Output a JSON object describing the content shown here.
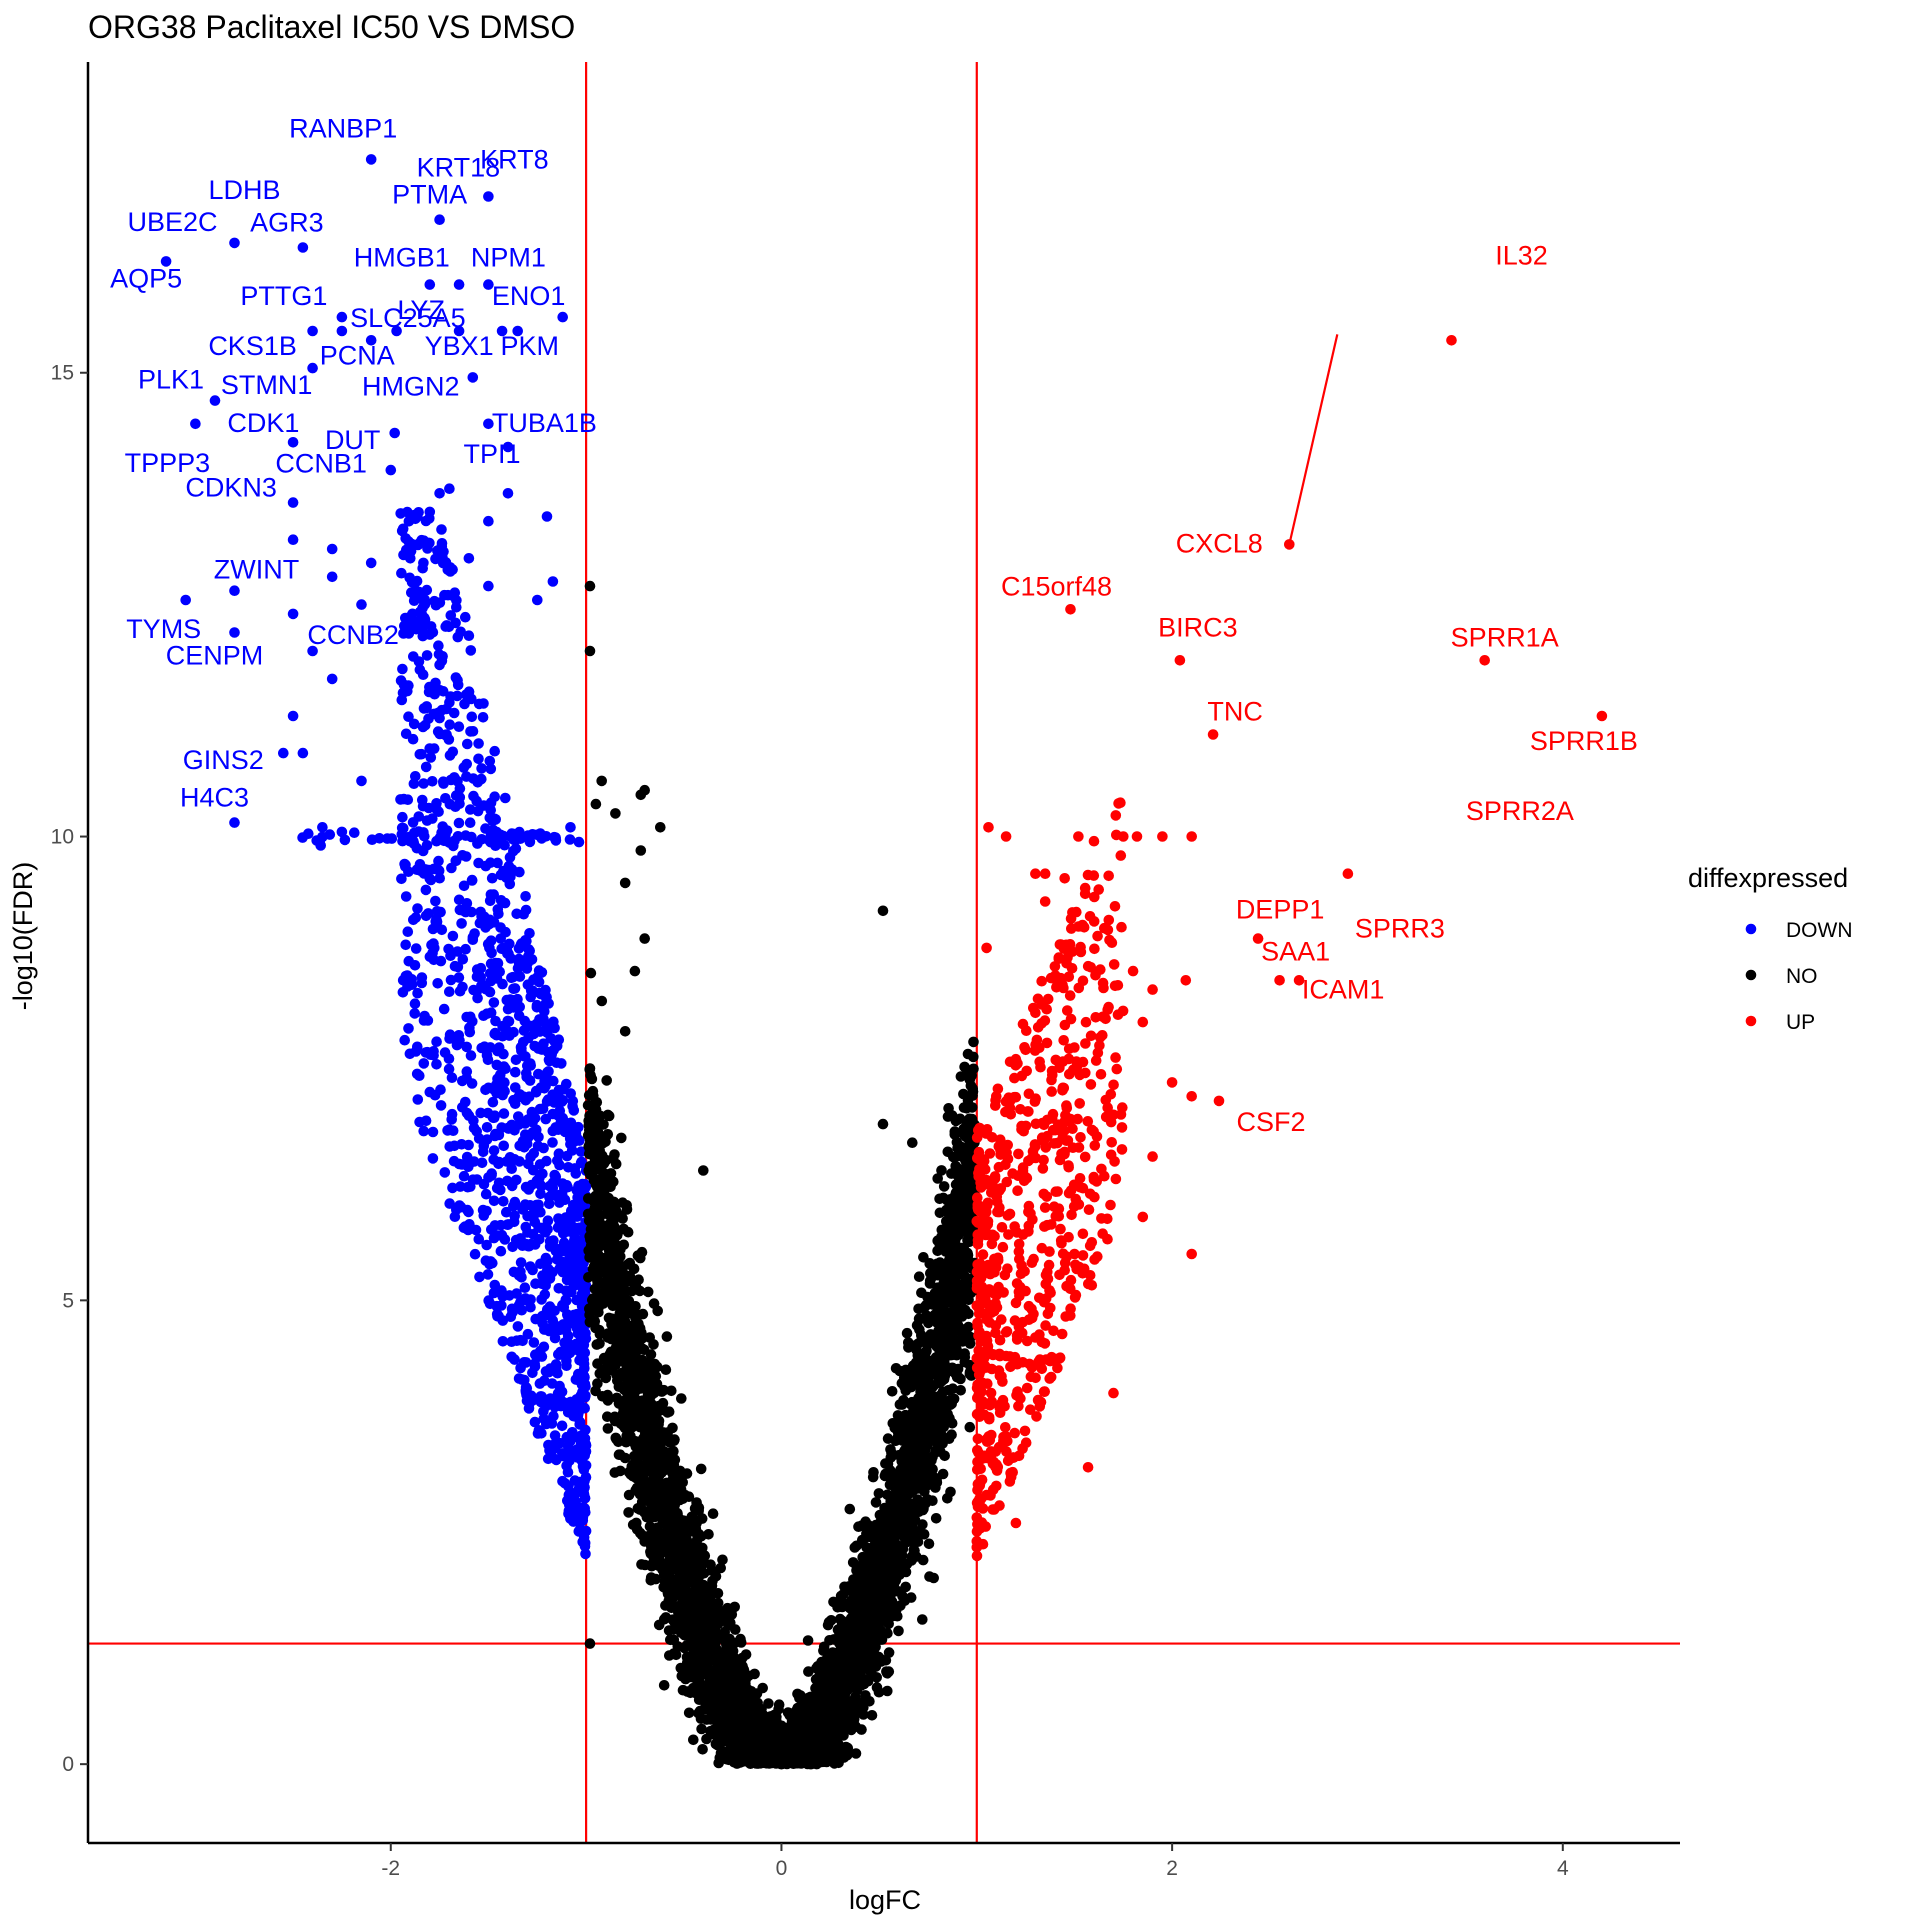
{
  "chart_data": {
    "type": "scatter",
    "title": "ORG38 Paclitaxel IC50 VS DMSO",
    "xlabel": "logFC",
    "ylabel": "-log10(FDR)",
    "xlim": [
      -3.55,
      4.6
    ],
    "ylim": [
      -0.85,
      18.35
    ],
    "xticks": [
      -2,
      0,
      2,
      4
    ],
    "xtick_labels": [
      "-2",
      "0",
      "2",
      "4"
    ],
    "yticks": [
      0,
      5,
      10,
      15
    ],
    "ytick_labels": [
      "0",
      "5",
      "10",
      "15"
    ],
    "grid": false,
    "reference_lines": {
      "vertical": [
        -1,
        1
      ],
      "horizontal": [
        1.3
      ],
      "color": "#ff0000"
    },
    "legend": {
      "title": "diffexpressed",
      "position": "right",
      "entries": [
        {
          "label": "DOWN",
          "color": "#0000ff"
        },
        {
          "label": "NO",
          "color": "#000000"
        },
        {
          "label": "UP",
          "color": "#ff0000"
        }
      ]
    },
    "series": [
      {
        "name": "DOWN",
        "color": "#0000ff",
        "points": [
          [
            -2.1,
            17.3
          ],
          [
            -1.5,
            16.9
          ],
          [
            -1.75,
            16.65
          ],
          [
            -2.8,
            16.4
          ],
          [
            -2.45,
            16.35
          ],
          [
            -3.15,
            16.2
          ],
          [
            -1.8,
            15.95
          ],
          [
            -1.65,
            15.95
          ],
          [
            -1.5,
            15.95
          ],
          [
            -1.12,
            15.6
          ],
          [
            -2.25,
            15.6
          ],
          [
            -2.4,
            15.45
          ],
          [
            -2.25,
            15.45
          ],
          [
            -1.65,
            15.45
          ],
          [
            -1.43,
            15.45
          ],
          [
            -1.35,
            15.45
          ],
          [
            -1.97,
            15.45
          ],
          [
            -2.1,
            15.35
          ],
          [
            -2.4,
            15.05
          ],
          [
            -1.58,
            14.95
          ],
          [
            -2.9,
            14.7
          ],
          [
            -3.0,
            14.45
          ],
          [
            -1.5,
            14.45
          ],
          [
            -2.5,
            14.25
          ],
          [
            -1.98,
            14.35
          ],
          [
            -1.4,
            14.2
          ],
          [
            -2.0,
            13.95
          ],
          [
            -1.7,
            13.75
          ],
          [
            -1.75,
            13.7
          ],
          [
            -1.4,
            13.7
          ],
          [
            -2.5,
            13.6
          ],
          [
            -1.8,
            13.5
          ],
          [
            -1.5,
            13.4
          ],
          [
            -1.2,
            13.45
          ],
          [
            -2.5,
            13.2
          ],
          [
            -2.3,
            13.1
          ],
          [
            -1.6,
            13.0
          ],
          [
            -2.1,
            12.95
          ],
          [
            -1.9,
            13.0
          ],
          [
            -2.3,
            12.8
          ],
          [
            -1.17,
            12.75
          ],
          [
            -2.8,
            12.65
          ],
          [
            -3.05,
            12.55
          ],
          [
            -1.5,
            12.7
          ],
          [
            -2.15,
            12.5
          ],
          [
            -2.5,
            12.4
          ],
          [
            -1.25,
            12.55
          ],
          [
            -1.9,
            12.3
          ],
          [
            -2.8,
            12.2
          ],
          [
            -2.4,
            12.0
          ],
          [
            -2.3,
            11.7
          ],
          [
            -1.75,
            11.85
          ],
          [
            -2.5,
            11.3
          ],
          [
            -2.55,
            10.9
          ],
          [
            -2.45,
            10.9
          ],
          [
            -2.15,
            10.6
          ],
          [
            -1.95,
            10.4
          ],
          [
            -2.8,
            10.15
          ],
          [
            -1.08,
            10.1
          ],
          [
            -2.35,
            10.1
          ],
          [
            -2.25,
            10.05
          ]
        ]
      },
      {
        "name": "NO",
        "color": "#000000",
        "points": [
          [
            -0.98,
            12.7
          ],
          [
            -0.98,
            12.0
          ],
          [
            -0.92,
            10.6
          ],
          [
            -0.7,
            10.5
          ],
          [
            -0.72,
            10.45
          ],
          [
            -0.95,
            10.35
          ],
          [
            -0.62,
            10.1
          ],
          [
            -0.72,
            9.85
          ],
          [
            -0.85,
            10.25
          ],
          [
            0.52,
            9.2
          ],
          [
            -0.8,
            9.5
          ],
          [
            -0.7,
            8.9
          ],
          [
            -0.75,
            8.55
          ],
          [
            -0.8,
            7.9
          ],
          [
            0.52,
            6.9
          ],
          [
            0.67,
            6.7
          ],
          [
            -0.4,
            6.4
          ],
          [
            0.35,
            2.75
          ],
          [
            -0.35,
            2.7
          ],
          [
            -0.98,
            1.3
          ],
          [
            -0.6,
            0.85
          ],
          [
            -0.5,
            0.95
          ],
          [
            -0.2,
            0.4
          ],
          [
            -0.1,
            0.2
          ],
          [
            0.0,
            0.0
          ],
          [
            0.1,
            0.2
          ],
          [
            0.2,
            0.5
          ],
          [
            0.3,
            0.9
          ],
          [
            0.4,
            1.3
          ],
          [
            0.55,
            1.8
          ],
          [
            0.65,
            2.5
          ],
          [
            0.75,
            3.5
          ],
          [
            0.85,
            4.5
          ],
          [
            0.9,
            5.5
          ],
          [
            0.95,
            6.5
          ],
          [
            -0.2,
            0.35
          ],
          [
            -0.3,
            0.7
          ],
          [
            -0.45,
            1.2
          ],
          [
            -0.55,
            1.7
          ],
          [
            -0.7,
            2.4
          ],
          [
            -0.8,
            3.3
          ],
          [
            -0.85,
            4.3
          ],
          [
            -0.9,
            5.3
          ],
          [
            -0.95,
            6.3
          ],
          [
            -0.98,
            7.5
          ]
        ]
      },
      {
        "name": "UP",
        "color": "#ff0000",
        "points": [
          [
            3.43,
            15.35
          ],
          [
            2.6,
            13.15
          ],
          [
            1.48,
            12.45
          ],
          [
            2.04,
            11.9
          ],
          [
            3.6,
            11.9
          ],
          [
            2.21,
            11.1
          ],
          [
            4.2,
            11.3
          ],
          [
            2.9,
            9.6
          ],
          [
            2.44,
            8.9
          ],
          [
            2.55,
            8.45
          ],
          [
            2.65,
            8.45
          ],
          [
            1.06,
            10.1
          ],
          [
            1.15,
            10.0
          ],
          [
            1.52,
            10.0
          ],
          [
            1.6,
            9.95
          ],
          [
            1.75,
            10.0
          ],
          [
            1.82,
            10.0
          ],
          [
            1.95,
            10.0
          ],
          [
            2.1,
            10.0
          ],
          [
            1.3,
            9.6
          ],
          [
            1.35,
            9.6
          ],
          [
            1.45,
            9.55
          ],
          [
            1.35,
            9.3
          ],
          [
            1.8,
            8.55
          ],
          [
            2.07,
            8.45
          ],
          [
            1.9,
            8.35
          ],
          [
            1.85,
            8.0
          ],
          [
            2.24,
            7.15
          ],
          [
            2.1,
            7.2
          ],
          [
            2.0,
            7.35
          ],
          [
            1.9,
            6.55
          ],
          [
            1.85,
            5.9
          ],
          [
            2.1,
            5.5
          ],
          [
            1.7,
            4.0
          ],
          [
            1.57,
            3.2
          ],
          [
            1.15,
            4.4
          ],
          [
            1.25,
            5.1
          ],
          [
            1.35,
            6.0
          ],
          [
            1.45,
            6.6
          ],
          [
            1.1,
            7.2
          ],
          [
            1.2,
            7.6
          ],
          [
            1.3,
            8.1
          ],
          [
            1.4,
            8.6
          ],
          [
            1.05,
            8.8
          ],
          [
            1.15,
            3.5
          ],
          [
            1.05,
            2.9
          ],
          [
            1.2,
            2.6
          ],
          [
            1.1,
            3.0
          ],
          [
            1.3,
            4.6
          ],
          [
            1.5,
            5.5
          ],
          [
            1.6,
            6.3
          ],
          [
            1.7,
            7.0
          ]
        ]
      }
    ],
    "labels": [
      {
        "text": "RANBP1",
        "x": -2.1,
        "y": 17.3,
        "group": "DOWN"
      },
      {
        "text": "KRT8",
        "x": -1.5,
        "y": 16.9,
        "group": "DOWN"
      },
      {
        "text": "KRT18",
        "x": -1.5,
        "y": 16.9,
        "group": "DOWN"
      },
      {
        "text": "LDHB",
        "x": -2.8,
        "y": 16.4,
        "group": "DOWN"
      },
      {
        "text": "SLC25A5",
        "x": -2.25,
        "y": 15.6,
        "group": "DOWN"
      },
      {
        "text": "PTMA",
        "x": -1.75,
        "y": 16.65,
        "group": "DOWN"
      },
      {
        "text": "UBE2C",
        "x": -2.8,
        "y": 16.4,
        "group": "DOWN"
      },
      {
        "text": "AGR3",
        "x": -2.45,
        "y": 16.35,
        "group": "DOWN"
      },
      {
        "text": "HMGB1",
        "x": -1.8,
        "y": 15.95,
        "group": "DOWN"
      },
      {
        "text": "NPM1",
        "x": -1.5,
        "y": 15.95,
        "group": "DOWN"
      },
      {
        "text": "AQP5",
        "x": -3.15,
        "y": 16.2,
        "group": "DOWN"
      },
      {
        "text": "PTTG1",
        "x": -2.25,
        "y": 15.6,
        "group": "DOWN"
      },
      {
        "text": "LYZ",
        "x": -1.65,
        "y": 15.45,
        "group": "DOWN"
      },
      {
        "text": "ENO1",
        "x": -1.12,
        "y": 15.6,
        "group": "DOWN"
      },
      {
        "text": "CKS1B",
        "x": -2.4,
        "y": 15.45,
        "group": "DOWN"
      },
      {
        "text": "PCNA",
        "x": -2.1,
        "y": 15.35,
        "group": "DOWN"
      },
      {
        "text": "YBX1",
        "x": -1.65,
        "y": 15.45,
        "group": "DOWN"
      },
      {
        "text": "PKM",
        "x": -1.35,
        "y": 15.45,
        "group": "DOWN"
      },
      {
        "text": "PLK1",
        "x": -2.9,
        "y": 14.7,
        "group": "DOWN"
      },
      {
        "text": "STMN1",
        "x": -2.4,
        "y": 15.05,
        "group": "DOWN"
      },
      {
        "text": "HMGN2",
        "x": -1.58,
        "y": 14.95,
        "group": "DOWN"
      },
      {
        "text": "TUBA1B",
        "x": -1.5,
        "y": 14.45,
        "group": "DOWN"
      },
      {
        "text": "CDK1",
        "x": -3.0,
        "y": 14.45,
        "group": "DOWN"
      },
      {
        "text": "DUT",
        "x": -1.98,
        "y": 14.35,
        "group": "DOWN"
      },
      {
        "text": "TPI1",
        "x": -1.4,
        "y": 14.2,
        "group": "DOWN"
      },
      {
        "text": "TPPP3",
        "x": -3.0,
        "y": 14.45,
        "group": "DOWN"
      },
      {
        "text": "CCNB1",
        "x": -2.5,
        "y": 14.25,
        "group": "DOWN"
      },
      {
        "text": "CDKN3",
        "x": -2.5,
        "y": 13.6,
        "group": "DOWN"
      },
      {
        "text": "ZWINT",
        "x": -2.8,
        "y": 12.65,
        "group": "DOWN"
      },
      {
        "text": "TYMS",
        "x": -3.05,
        "y": 12.55,
        "group": "DOWN"
      },
      {
        "text": "CCNB2",
        "x": -2.5,
        "y": 12.4,
        "group": "DOWN"
      },
      {
        "text": "CENPM",
        "x": -2.8,
        "y": 12.2,
        "group": "DOWN"
      },
      {
        "text": "GINS2",
        "x": -2.55,
        "y": 10.9,
        "group": "DOWN"
      },
      {
        "text": "H4C3",
        "x": -2.8,
        "y": 10.15,
        "group": "DOWN"
      },
      {
        "text": "IL32",
        "x": 3.43,
        "y": 15.35,
        "group": "UP"
      },
      {
        "text": "CXCL8",
        "x": 2.6,
        "y": 13.15,
        "group": "UP"
      },
      {
        "text": "C15orf48",
        "x": 1.48,
        "y": 12.45,
        "group": "UP"
      },
      {
        "text": "BIRC3",
        "x": 2.04,
        "y": 11.9,
        "group": "UP"
      },
      {
        "text": "SPRR1A",
        "x": 3.6,
        "y": 11.9,
        "group": "UP"
      },
      {
        "text": "TNC",
        "x": 2.21,
        "y": 11.1,
        "group": "UP"
      },
      {
        "text": "SPRR1B",
        "x": 4.2,
        "y": 11.3,
        "group": "UP"
      },
      {
        "text": "SPRR2A",
        "x": 4.2,
        "y": 11.3,
        "group": "UP"
      },
      {
        "text": "DEPP1",
        "x": 2.44,
        "y": 8.9,
        "group": "UP"
      },
      {
        "text": "SPRR3",
        "x": 2.9,
        "y": 9.6,
        "group": "UP"
      },
      {
        "text": "SAA1",
        "x": 2.55,
        "y": 8.45,
        "group": "UP"
      },
      {
        "text": "ICAM1",
        "x": 2.65,
        "y": 8.45,
        "group": "UP"
      },
      {
        "text": "CSF2",
        "x": 2.24,
        "y": 7.15,
        "group": "UP"
      }
    ]
  }
}
